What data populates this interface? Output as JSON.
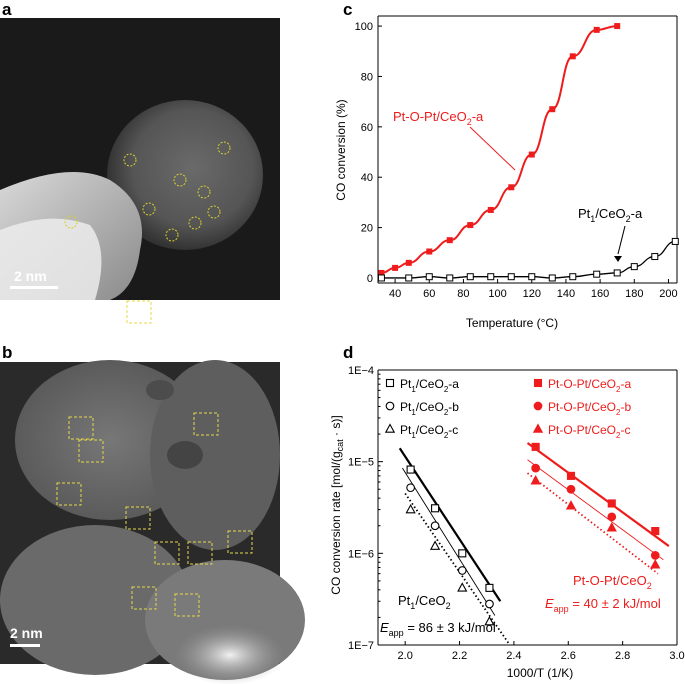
{
  "panels": {
    "a": {
      "label": "a",
      "scalebar": "2 nm",
      "circles": [
        [
          130,
          160
        ],
        [
          224,
          148
        ],
        [
          180,
          180
        ],
        [
          204,
          192
        ],
        [
          149,
          209
        ],
        [
          214,
          212
        ],
        [
          195,
          223
        ],
        [
          172,
          235
        ],
        [
          71,
          222
        ]
      ]
    },
    "b": {
      "label": "b",
      "scalebar": "2 nm",
      "boxes": [
        [
          138,
          312
        ],
        [
          80,
          428
        ],
        [
          90,
          451
        ],
        [
          205,
          424
        ],
        [
          68,
          494
        ],
        [
          137,
          518
        ],
        [
          166,
          553
        ],
        [
          199,
          553
        ],
        [
          239,
          542
        ],
        [
          143,
          598
        ],
        [
          186,
          605
        ]
      ]
    },
    "c": {
      "label": "c"
    },
    "d": {
      "label": "d"
    }
  },
  "chart_data": [
    {
      "type": "line",
      "xlabel": "Temperature (°C)",
      "ylabel": "CO conversion (%)",
      "xlim": [
        30,
        205
      ],
      "ylim": [
        -2,
        104
      ],
      "xticks": [
        "40",
        "60",
        "80",
        "100",
        "120",
        "140",
        "160",
        "180",
        "200"
      ],
      "yticks": [
        "0",
        "20",
        "40",
        "60",
        "80",
        "100"
      ],
      "series": [
        {
          "name": "Pt-O-Pt/CeO2-a",
          "name_main": "Pt-O-Pt/CeO",
          "name_sub": "2",
          "name_tail": "-a",
          "color": "#ee1c1c",
          "marker": "filled-square",
          "x": [
            32,
            40,
            48,
            60,
            72,
            84,
            96,
            108,
            120,
            132,
            144,
            158,
            170
          ],
          "y": [
            2,
            4,
            6,
            10.5,
            15,
            21,
            27,
            36,
            49,
            67,
            88,
            98.5,
            100
          ]
        },
        {
          "name": "Pt1/CeO2-a",
          "name_main": "Pt",
          "name_sub": "1",
          "name_mid": "/CeO",
          "name_sub2": "2",
          "name_tail": "-a",
          "color": "#000000",
          "marker": "open-square",
          "x": [
            32,
            48,
            60,
            72,
            84,
            96,
            108,
            120,
            132,
            144,
            158,
            170,
            180,
            192,
            204
          ],
          "y": [
            0,
            0,
            0.5,
            0,
            0.5,
            0.5,
            0.5,
            0.5,
            0,
            0.5,
            1.5,
            2,
            4.5,
            8.5,
            14.5
          ]
        }
      ]
    },
    {
      "type": "scatter",
      "xlabel": "1000/T (1/K)",
      "ylabel": "CO conversion rate [mol/(gcat · s)]",
      "ylabel_main": "CO conversion rate [mol/(g",
      "ylabel_sub": "cat",
      "ylabel_tail": " · s)]",
      "xlim": [
        1.9,
        3.0
      ],
      "ylim": [
        1e-07,
        0.0001
      ],
      "yscale": "log",
      "xticks": [
        "2.0",
        "2.2",
        "2.4",
        "2.6",
        "2.8",
        "3.0"
      ],
      "yticks": [
        "1E−7",
        "1E−6",
        "1E−5",
        "1E−4"
      ],
      "annotations": [
        {
          "text_main": "Pt",
          "text_sub": "1",
          "text_tail": "/CeO",
          "text_sub2": "2",
          "color": "#000000"
        },
        {
          "text": "E",
          "text_sub": "app",
          "text_tail": " = 86 ± 3 kJ/mol",
          "color": "#000000"
        },
        {
          "text_main": "Pt-O-Pt/CeO",
          "text_sub": "2",
          "color": "#ee1c1c"
        },
        {
          "text": "E",
          "text_sub": "app",
          "text_tail": " = 40 ± 2 kJ/mol",
          "color": "#ee1c1c"
        }
      ],
      "series": [
        {
          "name": "Pt1/CeO2-a",
          "sub_main": "Pt",
          "sub": "1",
          "mid": "/CeO",
          "sub2": "2",
          "tail": "-a",
          "color": "#000000",
          "marker": "open-square",
          "x": [
            2.02,
            2.11,
            2.21,
            2.31
          ],
          "y": [
            8.2e-06,
            3.1e-06,
            1e-06,
            4.2e-07
          ]
        },
        {
          "name": "Pt1/CeO2-b",
          "sub_main": "Pt",
          "sub": "1",
          "mid": "/CeO",
          "sub2": "2",
          "tail": "-b",
          "color": "#000000",
          "marker": "open-circle",
          "x": [
            2.02,
            2.11,
            2.21,
            2.31
          ],
          "y": [
            5.2e-06,
            2e-06,
            6.5e-07,
            2.8e-07
          ]
        },
        {
          "name": "Pt1/CeO2-c",
          "sub_main": "Pt",
          "sub": "1",
          "mid": "/CeO",
          "sub2": "2",
          "tail": "-c",
          "color": "#000000",
          "marker": "open-triangle",
          "x": [
            2.02,
            2.11,
            2.21,
            2.31
          ],
          "y": [
            3e-06,
            1.2e-06,
            4.2e-07,
            1.8e-07
          ]
        },
        {
          "name": "Pt-O-Pt/CeO2-a",
          "sub_main": "Pt-O-Pt/CeO",
          "sub": "2",
          "tail": "-a",
          "color": "#ee1c1c",
          "marker": "filled-square",
          "x": [
            2.48,
            2.61,
            2.76,
            2.92
          ],
          "y": [
            1.45e-05,
            7e-06,
            3.5e-06,
            1.75e-06
          ]
        },
        {
          "name": "Pt-O-Pt/CeO2-b",
          "sub_main": "Pt-O-Pt/CeO",
          "sub": "2",
          "tail": "-b",
          "color": "#ee1c1c",
          "marker": "filled-circle",
          "x": [
            2.48,
            2.61,
            2.76,
            2.92
          ],
          "y": [
            8.5e-06,
            5e-06,
            2.5e-06,
            9.5e-07
          ]
        },
        {
          "name": "Pt-O-Pt/CeO2-c",
          "sub_main": "Pt-O-Pt/CeO",
          "sub": "2",
          "tail": "-c",
          "color": "#ee1c1c",
          "marker": "filled-triangle",
          "x": [
            2.48,
            2.61,
            2.76,
            2.92
          ],
          "y": [
            6.2e-06,
            3.3e-06,
            1.9e-06,
            7.5e-07
          ]
        }
      ],
      "fits": [
        {
          "color": "#000000",
          "style": "solid-thick",
          "x": [
            1.98,
            2.35
          ],
          "y": [
            1.4e-05,
            3e-07
          ]
        },
        {
          "color": "#000000",
          "style": "solid-thin",
          "x": [
            1.99,
            2.33
          ],
          "y": [
            8.5e-06,
            2.1e-07
          ]
        },
        {
          "color": "#000000",
          "style": "dotted",
          "x": [
            2.0,
            2.38
          ],
          "y": [
            4.5e-06,
            1.05e-07
          ]
        },
        {
          "color": "#ee1c1c",
          "style": "solid-thick",
          "x": [
            2.45,
            2.97
          ],
          "y": [
            1.6e-05,
            1.2e-06
          ]
        },
        {
          "color": "#ee1c1c",
          "style": "solid-thin",
          "x": [
            2.45,
            2.95
          ],
          "y": [
            1.05e-05,
            8.5e-07
          ]
        },
        {
          "color": "#ee1c1c",
          "style": "dotted",
          "x": [
            2.45,
            2.93
          ],
          "y": [
            7.5e-06,
            6e-07
          ]
        }
      ]
    }
  ]
}
